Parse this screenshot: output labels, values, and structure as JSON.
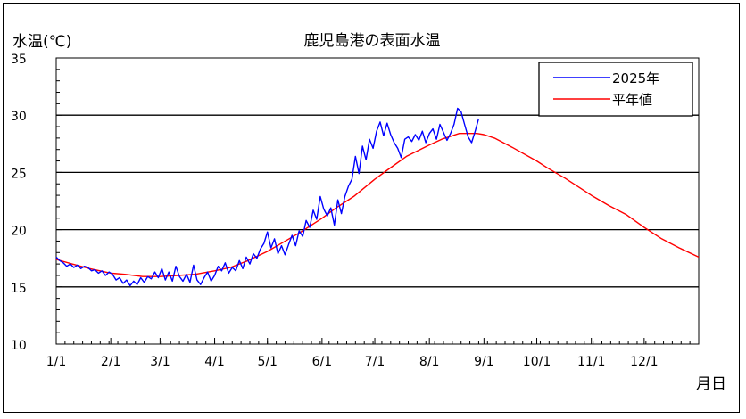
{
  "chart_data": {
    "type": "line",
    "title": "鹿児島港の表面水温",
    "ylabel": "水温(℃)",
    "xlabel": "月日",
    "ylim": [
      10,
      35
    ],
    "yticks": [
      10,
      15,
      20,
      25,
      30,
      35
    ],
    "xlim": [
      1,
      366
    ],
    "xticks": [
      {
        "label": "1/1",
        "day": 1
      },
      {
        "label": "2/1",
        "day": 32
      },
      {
        "label": "3/1",
        "day": 60
      },
      {
        "label": "4/1",
        "day": 91
      },
      {
        "label": "5/1",
        "day": 121
      },
      {
        "label": "6/1",
        "day": 152
      },
      {
        "label": "7/1",
        "day": 182
      },
      {
        "label": "8/1",
        "day": 213
      },
      {
        "label": "9/1",
        "day": 244
      },
      {
        "label": "10/1",
        "day": 274
      },
      {
        "label": "11/1",
        "day": 305
      },
      {
        "label": "12/1",
        "day": 335
      }
    ],
    "grid": "horizontal at 15, 20, 25, 30",
    "legend_position": "top-right",
    "series": [
      {
        "name": "2025年",
        "color": "#0000ff",
        "points": [
          [
            1,
            17.6
          ],
          [
            3,
            17.3
          ],
          [
            5,
            17.1
          ],
          [
            7,
            16.8
          ],
          [
            9,
            17.0
          ],
          [
            11,
            16.7
          ],
          [
            13,
            16.9
          ],
          [
            15,
            16.6
          ],
          [
            17,
            16.8
          ],
          [
            19,
            16.7
          ],
          [
            21,
            16.4
          ],
          [
            23,
            16.5
          ],
          [
            25,
            16.2
          ],
          [
            27,
            16.4
          ],
          [
            29,
            16.0
          ],
          [
            31,
            16.3
          ],
          [
            33,
            16.1
          ],
          [
            35,
            15.6
          ],
          [
            37,
            15.8
          ],
          [
            39,
            15.3
          ],
          [
            41,
            15.6
          ],
          [
            43,
            15.1
          ],
          [
            45,
            15.5
          ],
          [
            47,
            15.2
          ],
          [
            49,
            15.8
          ],
          [
            51,
            15.4
          ],
          [
            53,
            15.9
          ],
          [
            55,
            15.7
          ],
          [
            57,
            16.3
          ],
          [
            59,
            15.8
          ],
          [
            61,
            16.6
          ],
          [
            63,
            15.6
          ],
          [
            65,
            16.3
          ],
          [
            67,
            15.5
          ],
          [
            69,
            16.8
          ],
          [
            71,
            15.9
          ],
          [
            73,
            15.5
          ],
          [
            75,
            16.1
          ],
          [
            77,
            15.4
          ],
          [
            79,
            16.9
          ],
          [
            81,
            15.6
          ],
          [
            83,
            15.2
          ],
          [
            85,
            15.8
          ],
          [
            87,
            16.3
          ],
          [
            89,
            15.5
          ],
          [
            91,
            16.0
          ],
          [
            93,
            16.8
          ],
          [
            95,
            16.4
          ],
          [
            97,
            17.1
          ],
          [
            99,
            16.2
          ],
          [
            101,
            16.7
          ],
          [
            103,
            16.4
          ],
          [
            105,
            17.3
          ],
          [
            107,
            16.6
          ],
          [
            109,
            17.6
          ],
          [
            111,
            17.0
          ],
          [
            113,
            17.9
          ],
          [
            115,
            17.5
          ],
          [
            117,
            18.3
          ],
          [
            119,
            18.8
          ],
          [
            121,
            19.8
          ],
          [
            123,
            18.4
          ],
          [
            125,
            19.2
          ],
          [
            127,
            17.9
          ],
          [
            129,
            18.6
          ],
          [
            131,
            17.8
          ],
          [
            133,
            18.7
          ],
          [
            135,
            19.5
          ],
          [
            137,
            18.6
          ],
          [
            139,
            19.9
          ],
          [
            141,
            19.4
          ],
          [
            143,
            20.8
          ],
          [
            145,
            20.2
          ],
          [
            147,
            21.7
          ],
          [
            149,
            20.9
          ],
          [
            151,
            22.9
          ],
          [
            153,
            21.8
          ],
          [
            155,
            21.2
          ],
          [
            157,
            21.9
          ],
          [
            159,
            20.4
          ],
          [
            161,
            22.6
          ],
          [
            163,
            21.4
          ],
          [
            165,
            22.9
          ],
          [
            167,
            23.8
          ],
          [
            169,
            24.4
          ],
          [
            171,
            26.4
          ],
          [
            173,
            24.9
          ],
          [
            175,
            27.3
          ],
          [
            177,
            26.1
          ],
          [
            179,
            27.9
          ],
          [
            181,
            27.1
          ],
          [
            183,
            28.6
          ],
          [
            185,
            29.4
          ],
          [
            187,
            28.2
          ],
          [
            189,
            29.3
          ],
          [
            191,
            28.3
          ],
          [
            193,
            27.6
          ],
          [
            195,
            27.1
          ],
          [
            197,
            26.3
          ],
          [
            199,
            27.9
          ],
          [
            201,
            28.1
          ],
          [
            203,
            27.7
          ],
          [
            205,
            28.3
          ],
          [
            207,
            27.8
          ],
          [
            209,
            28.6
          ],
          [
            211,
            27.6
          ],
          [
            213,
            28.4
          ],
          [
            215,
            28.8
          ],
          [
            217,
            27.9
          ],
          [
            219,
            29.2
          ],
          [
            221,
            28.5
          ],
          [
            223,
            27.8
          ],
          [
            225,
            28.4
          ],
          [
            227,
            29.2
          ],
          [
            229,
            30.6
          ],
          [
            231,
            30.3
          ],
          [
            233,
            29.2
          ],
          [
            235,
            28.1
          ],
          [
            237,
            27.6
          ],
          [
            239,
            28.6
          ],
          [
            241,
            29.7
          ]
        ]
      },
      {
        "name": "平年値",
        "color": "#ff0000",
        "points": [
          [
            1,
            17.4
          ],
          [
            10,
            17.0
          ],
          [
            20,
            16.6
          ],
          [
            32,
            16.2
          ],
          [
            40,
            16.1
          ],
          [
            50,
            15.9
          ],
          [
            60,
            15.9
          ],
          [
            70,
            16.0
          ],
          [
            80,
            16.1
          ],
          [
            91,
            16.4
          ],
          [
            100,
            16.7
          ],
          [
            110,
            17.3
          ],
          [
            121,
            18.1
          ],
          [
            130,
            18.9
          ],
          [
            140,
            19.8
          ],
          [
            152,
            21.0
          ],
          [
            160,
            21.9
          ],
          [
            170,
            22.9
          ],
          [
            182,
            24.4
          ],
          [
            190,
            25.3
          ],
          [
            200,
            26.4
          ],
          [
            213,
            27.4
          ],
          [
            220,
            27.9
          ],
          [
            230,
            28.4
          ],
          [
            240,
            28.4
          ],
          [
            244,
            28.3
          ],
          [
            250,
            28.0
          ],
          [
            260,
            27.2
          ],
          [
            274,
            26.0
          ],
          [
            280,
            25.4
          ],
          [
            290,
            24.5
          ],
          [
            305,
            23.0
          ],
          [
            315,
            22.1
          ],
          [
            325,
            21.3
          ],
          [
            335,
            20.2
          ],
          [
            345,
            19.2
          ],
          [
            355,
            18.4
          ],
          [
            366,
            17.6
          ]
        ]
      }
    ]
  }
}
